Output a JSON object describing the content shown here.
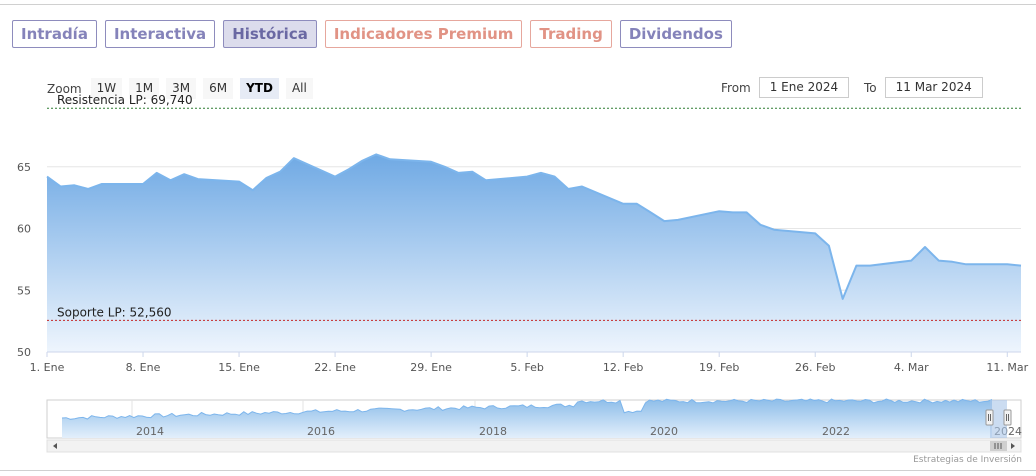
{
  "tabs": [
    {
      "label": "Intradía",
      "style": "normal"
    },
    {
      "label": "Interactiva",
      "style": "normal"
    },
    {
      "label": "Histórica",
      "style": "active"
    },
    {
      "label": "Indicadores Premium",
      "style": "premium"
    },
    {
      "label": "Trading",
      "style": "premium"
    },
    {
      "label": "Dividendos",
      "style": "normal"
    }
  ],
  "zoom": {
    "label": "Zoom",
    "options": [
      "1W",
      "1M",
      "3M",
      "6M",
      "YTD",
      "All"
    ],
    "selected": "YTD"
  },
  "range": {
    "from_label": "From",
    "from_value": "1 Ene 2024",
    "to_label": "To",
    "to_value": "11 Mar 2024"
  },
  "footer": "Estrategias de Inversión",
  "colors": {
    "line": "#7cb5ec",
    "resistance": "#2e7d32",
    "support": "#c62828",
    "tab_border": "#8e8cbd",
    "tab_premium": "#e19385"
  },
  "chart_data": {
    "type": "area",
    "title": "",
    "xlabel": "",
    "ylabel": "",
    "ylim": [
      50,
      70
    ],
    "yticks": [
      50,
      55,
      60,
      65
    ],
    "xlim": [
      "2024-01-01",
      "2024-03-12"
    ],
    "xticks": [
      {
        "date": "2024-01-01",
        "label": "1. Ene"
      },
      {
        "date": "2024-01-08",
        "label": "8. Ene"
      },
      {
        "date": "2024-01-15",
        "label": "15. Ene"
      },
      {
        "date": "2024-01-22",
        "label": "22. Ene"
      },
      {
        "date": "2024-01-29",
        "label": "29. Ene"
      },
      {
        "date": "2024-02-05",
        "label": "5. Feb"
      },
      {
        "date": "2024-02-12",
        "label": "12. Feb"
      },
      {
        "date": "2024-02-19",
        "label": "19. Feb"
      },
      {
        "date": "2024-02-26",
        "label": "26. Feb"
      },
      {
        "date": "2024-03-04",
        "label": "4. Mar"
      },
      {
        "date": "2024-03-11",
        "label": "11. Mar"
      }
    ],
    "series": [
      {
        "x": [
          "2024-01-01",
          "2024-01-02",
          "2024-01-03",
          "2024-01-04",
          "2024-01-05",
          "2024-01-08",
          "2024-01-09",
          "2024-01-10",
          "2024-01-11",
          "2024-01-12",
          "2024-01-15",
          "2024-01-16",
          "2024-01-17",
          "2024-01-18",
          "2024-01-19",
          "2024-01-22",
          "2024-01-23",
          "2024-01-24",
          "2024-01-25",
          "2024-01-26",
          "2024-01-29",
          "2024-01-30",
          "2024-01-31",
          "2024-02-01",
          "2024-02-02",
          "2024-02-05",
          "2024-02-06",
          "2024-02-07",
          "2024-02-08",
          "2024-02-09",
          "2024-02-12",
          "2024-02-13",
          "2024-02-14",
          "2024-02-15",
          "2024-02-16",
          "2024-02-19",
          "2024-02-20",
          "2024-02-21",
          "2024-02-22",
          "2024-02-23",
          "2024-02-26",
          "2024-02-27",
          "2024-02-28",
          "2024-02-29",
          "2024-03-01",
          "2024-03-04",
          "2024-03-05",
          "2024-03-06",
          "2024-03-07",
          "2024-03-08",
          "2024-03-11",
          "2024-03-12"
        ],
        "y": [
          64.2,
          63.4,
          63.5,
          63.2,
          63.6,
          63.6,
          64.5,
          63.9,
          64.4,
          64.0,
          63.8,
          63.1,
          64.1,
          64.6,
          65.7,
          64.2,
          64.8,
          65.5,
          66.0,
          65.6,
          65.4,
          65.0,
          64.5,
          64.6,
          63.9,
          64.2,
          64.5,
          64.2,
          63.2,
          63.4,
          62.0,
          62.0,
          61.3,
          60.6,
          60.7,
          61.4,
          61.3,
          61.3,
          60.3,
          59.9,
          59.6,
          58.6,
          54.3,
          57.0,
          57.0,
          57.4,
          58.5,
          57.4,
          57.3,
          57.1,
          57.1,
          57.0
        ]
      }
    ],
    "lines": [
      {
        "label": "Resistencia LP: 69,740",
        "value": 69.74
      },
      {
        "label": "Soporte LP: 52,560",
        "value": 52.56
      }
    ],
    "navigator": {
      "labels": [
        "2014",
        "2016",
        "2018",
        "2020",
        "2022",
        "2024"
      ]
    }
  }
}
